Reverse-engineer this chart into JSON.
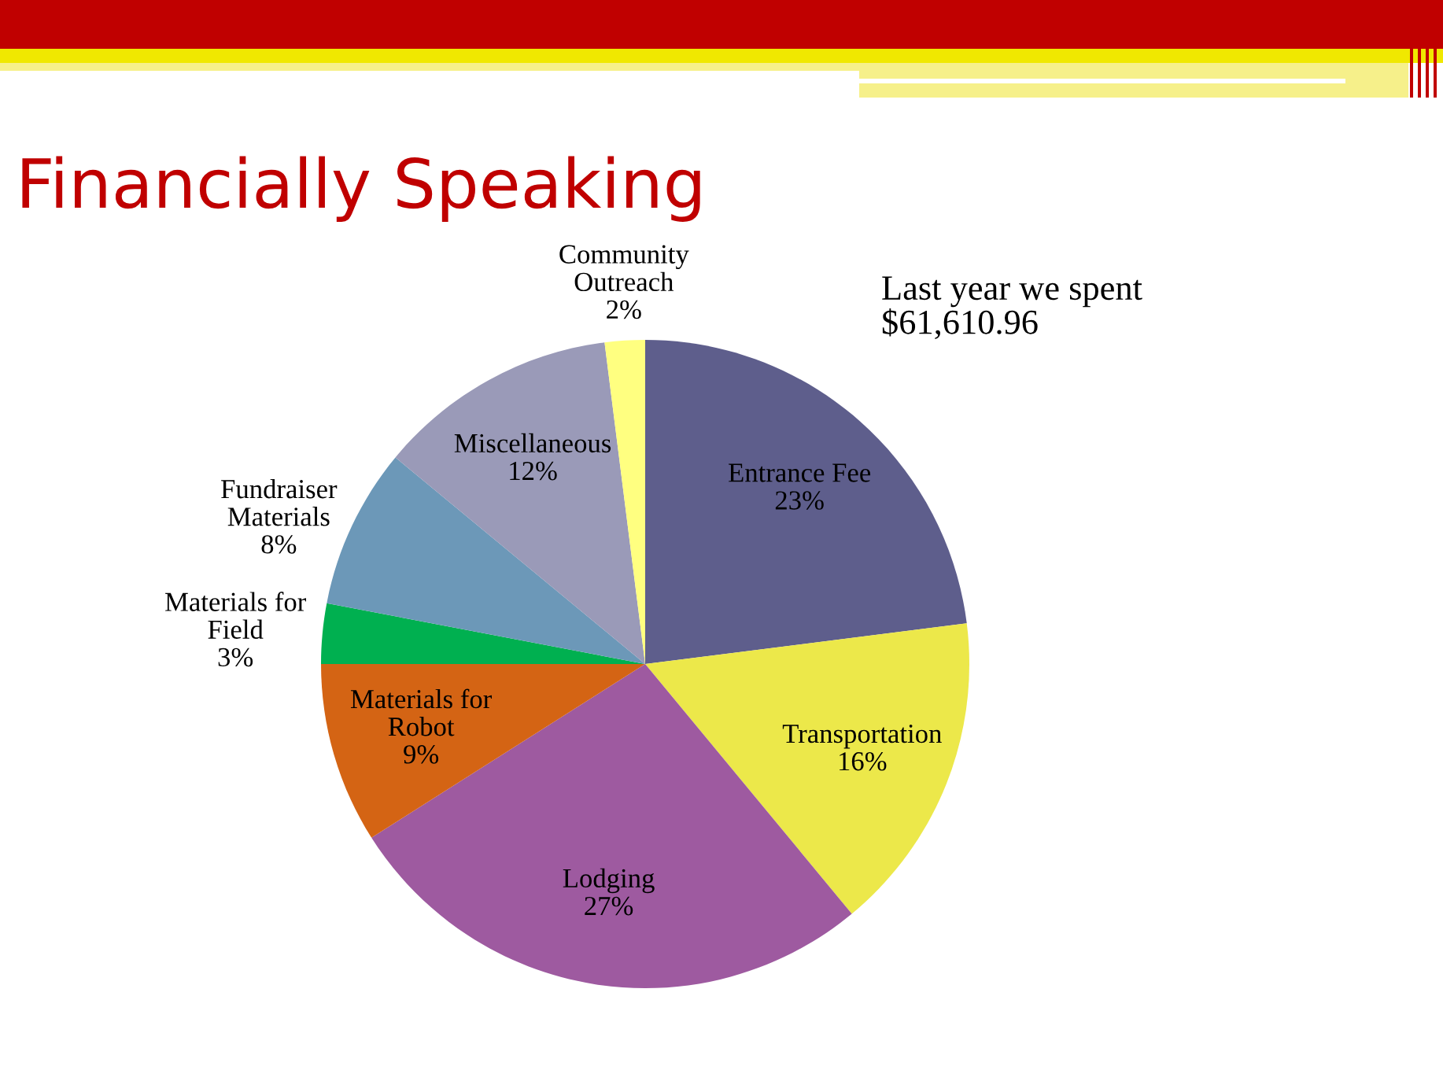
{
  "chart_data": {
    "type": "pie",
    "title": "Financially Speaking",
    "categories": [
      "Entrance Fee",
      "Transportation",
      "Lodging",
      "Materials for\nRobot",
      "Materials for\nField",
      "Fundraiser\nMaterials",
      "Miscellaneous",
      "Community\nOutreach"
    ],
    "values": [
      23,
      16,
      27,
      9,
      3,
      8,
      12,
      2
    ],
    "colors": [
      "#5e5e8c",
      "#ece84a",
      "#9e5aa0",
      "#d46414",
      "#00b050",
      "#6c98b8",
      "#9a9ab8",
      "#ffff80"
    ],
    "value_labels": [
      "23%",
      "16%",
      "27%",
      "9%",
      "3%",
      "8%",
      "12%",
      "2%"
    ],
    "annotations": [
      "Last year we spent\n$61,610.96"
    ]
  }
}
